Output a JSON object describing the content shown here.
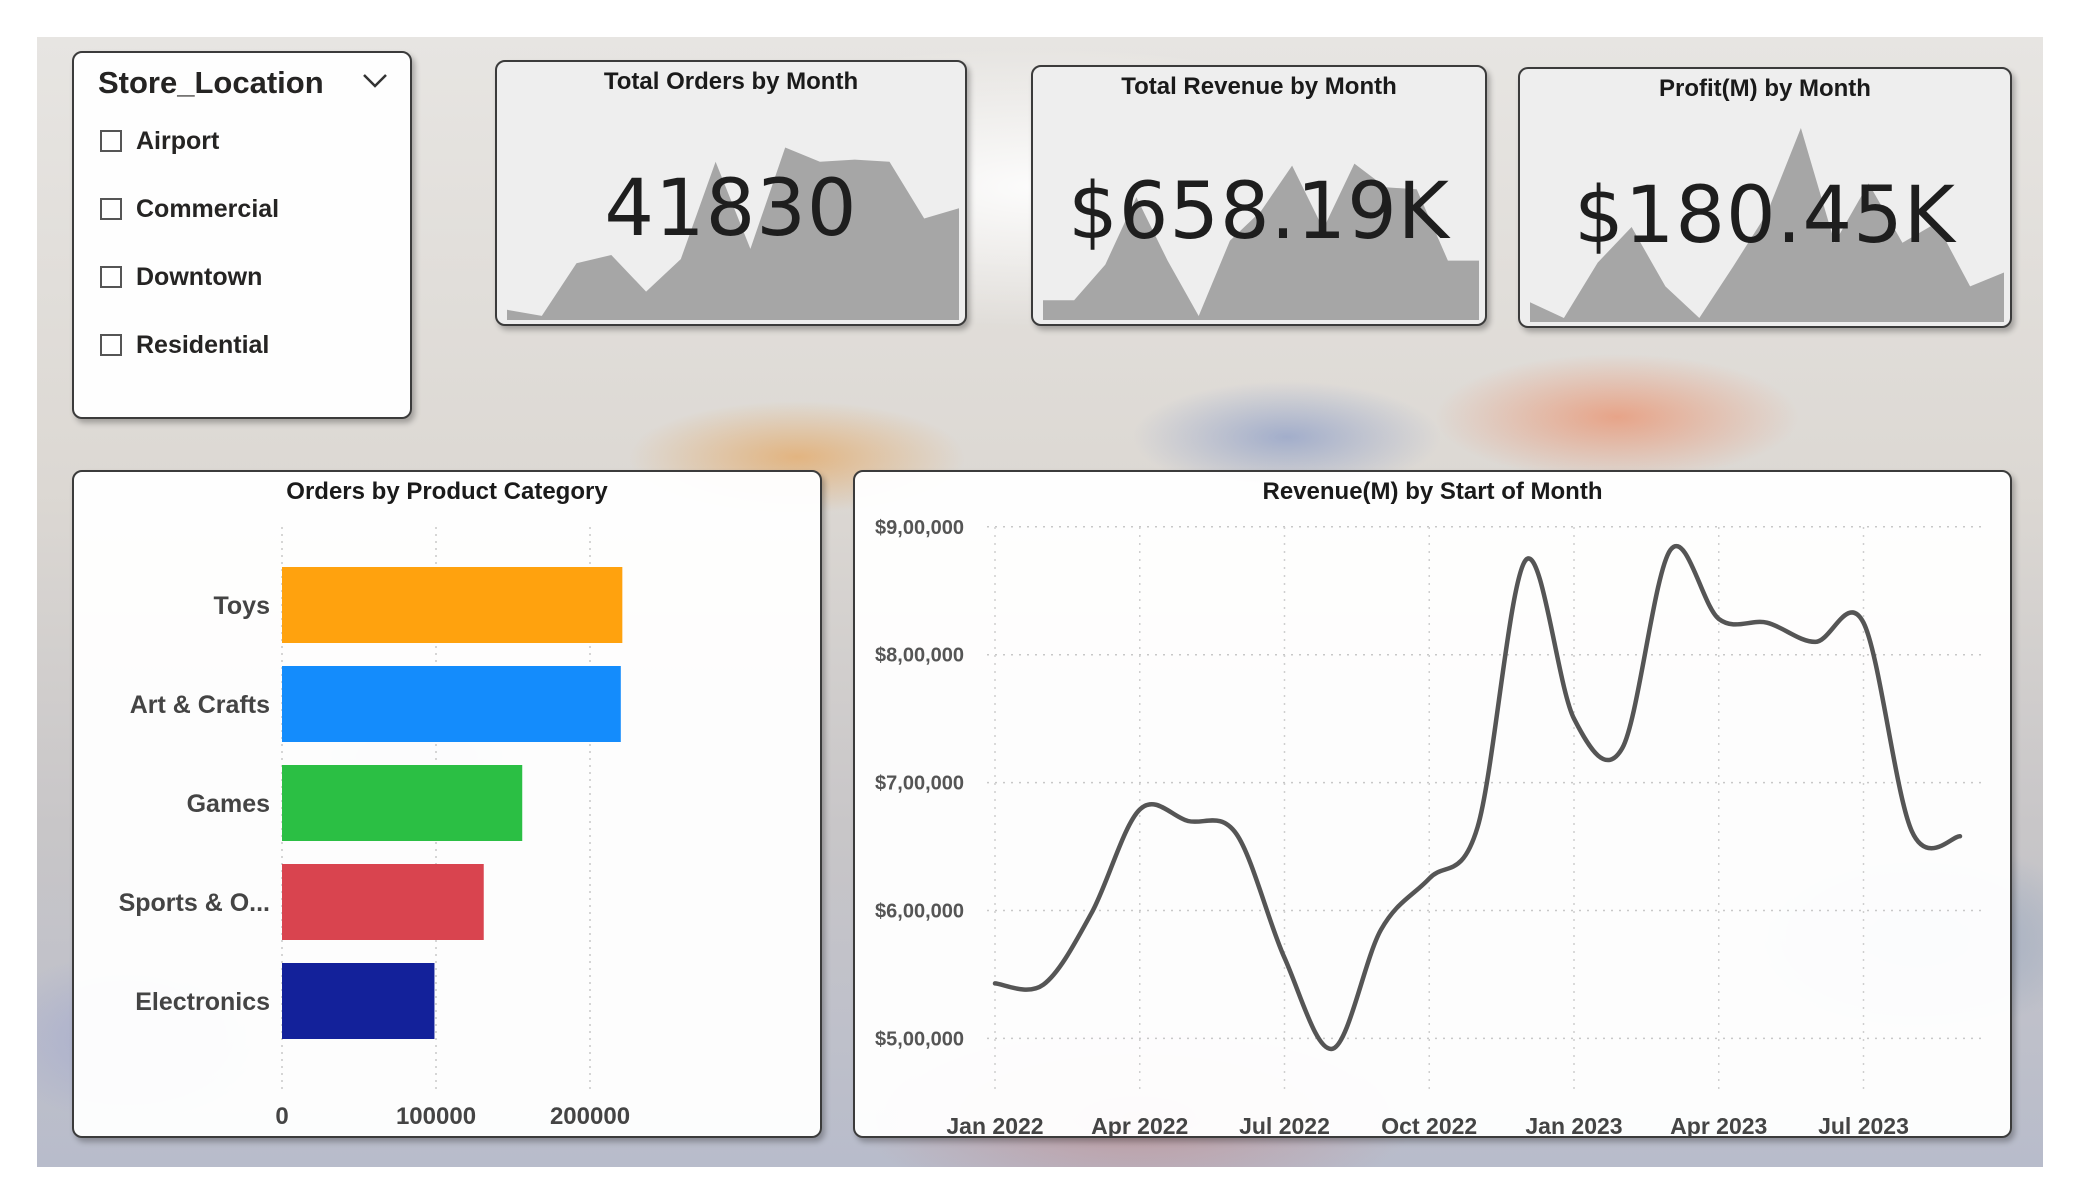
{
  "slicer": {
    "title": "Store_Location",
    "items": [
      {
        "label": "Airport",
        "checked": false
      },
      {
        "label": "Commercial",
        "checked": false
      },
      {
        "label": "Downtown",
        "checked": false
      },
      {
        "label": "Residential",
        "checked": false
      }
    ]
  },
  "kpis": [
    {
      "title": "Total Orders by Month",
      "value": "41830",
      "trend": [
        0.05,
        0.02,
        0.28,
        0.32,
        0.14,
        0.3,
        0.78,
        0.35,
        0.85,
        0.78,
        0.79,
        0.78,
        0.5,
        0.55
      ]
    },
    {
      "title": "Total Revenue by Month",
      "value": "$658.19K",
      "trend": [
        0.1,
        0.1,
        0.28,
        0.62,
        0.3,
        0.02,
        0.4,
        0.55,
        0.78,
        0.46,
        0.79,
        0.67,
        0.66,
        0.3,
        0.3
      ]
    },
    {
      "title": "Profit(M) by Month",
      "value": "$180.45K",
      "trend": [
        0.1,
        0.02,
        0.3,
        0.48,
        0.18,
        0.02,
        0.28,
        0.55,
        0.98,
        0.4,
        0.7,
        0.4,
        0.5,
        0.18,
        0.25
      ]
    }
  ],
  "colors": {
    "toys": "#FFA20E",
    "art_crafts": "#148CFC",
    "games": "#2BBF44",
    "sports": "#D9444F",
    "electronics": "#13219A",
    "line": "#555555",
    "kpi_area": "#a6a6a6"
  },
  "chart_data": [
    {
      "type": "bar",
      "orientation": "horizontal",
      "title": "Orders by Product Category",
      "categories": [
        "Toys",
        "Art & Crafts",
        "Games",
        "Sports & O...",
        "Electronics"
      ],
      "values": [
        221000,
        220000,
        156000,
        131000,
        99000
      ],
      "xlim": [
        0,
        250000
      ],
      "xticks": [
        0,
        100000,
        200000
      ],
      "xtick_labels": [
        "0",
        "100000",
        "200000"
      ],
      "grid": true
    },
    {
      "type": "line",
      "title": "Revenue(M) by Start of Month",
      "x": [
        "2022-01",
        "2022-02",
        "2022-03",
        "2022-04",
        "2022-05",
        "2022-06",
        "2022-07",
        "2022-08",
        "2022-09",
        "2022-10",
        "2022-11",
        "2022-12",
        "2023-01",
        "2023-02",
        "2023-03",
        "2023-04",
        "2023-05",
        "2023-06",
        "2023-07",
        "2023-08",
        "2023-09"
      ],
      "values": [
        543000,
        542000,
        598000,
        679000,
        670000,
        660000,
        563000,
        492000,
        585000,
        625000,
        665000,
        874000,
        750000,
        727000,
        882000,
        828000,
        825000,
        810000,
        825000,
        662000,
        658000
      ],
      "ylim": [
        480000,
        910000
      ],
      "yticks": [
        500000,
        600000,
        700000,
        800000,
        900000
      ],
      "ytick_labels": [
        "$5,00,000",
        "$6,00,000",
        "$7,00,000",
        "$8,00,000",
        "$9,00,000"
      ],
      "xtick_labels": [
        "Jan 2022",
        "Apr 2022",
        "Jul 2022",
        "Oct 2022",
        "Jan 2023",
        "Apr 2023",
        "Jul 2023"
      ],
      "xtick_positions": [
        0,
        3,
        6,
        9,
        12,
        15,
        18
      ],
      "grid": true
    }
  ]
}
